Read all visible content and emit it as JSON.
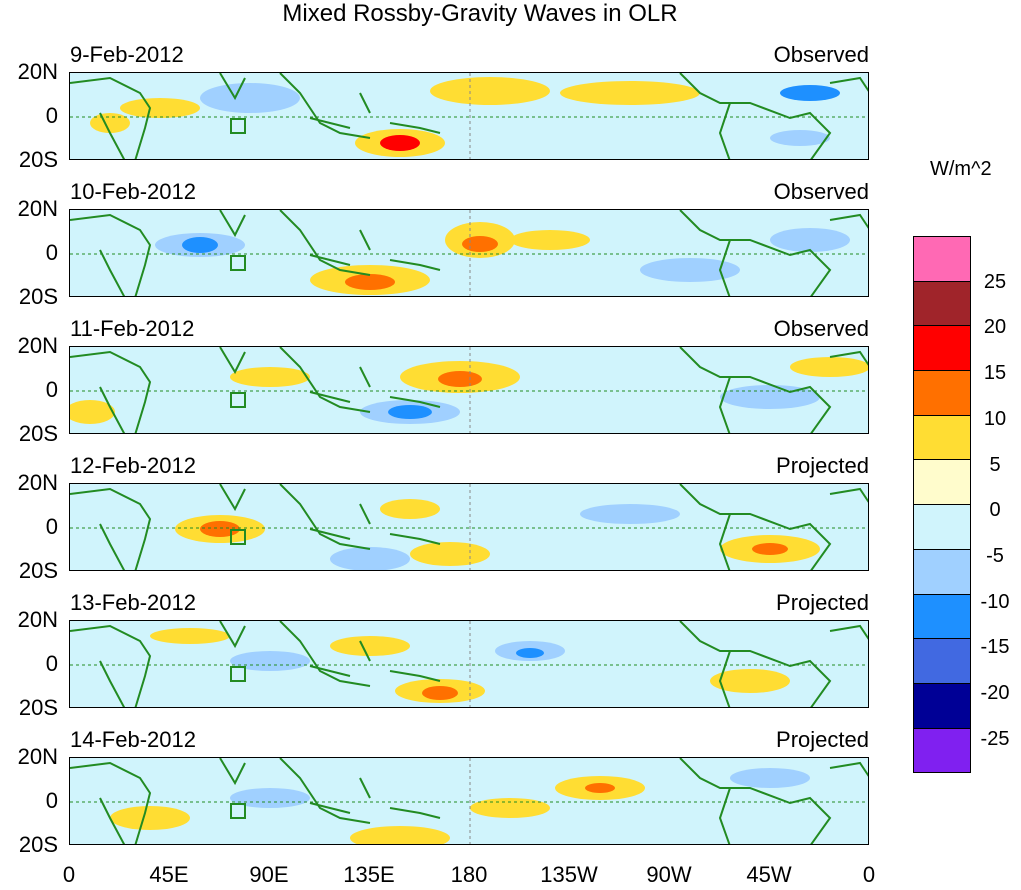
{
  "title": "Mixed Rossby-Gravity Waves in OLR",
  "panels": [
    {
      "date": "9-Feb-2012",
      "status": "Observed"
    },
    {
      "date": "10-Feb-2012",
      "status": "Observed"
    },
    {
      "date": "11-Feb-2012",
      "status": "Observed"
    },
    {
      "date": "12-Feb-2012",
      "status": "Projected"
    },
    {
      "date": "13-Feb-2012",
      "status": "Projected"
    },
    {
      "date": "14-Feb-2012",
      "status": "Projected"
    }
  ],
  "lat_labels": [
    "20N",
    "0",
    "20S"
  ],
  "lon_labels": [
    "0",
    "45E",
    "90E",
    "135E",
    "180",
    "135W",
    "90W",
    "45W",
    "0"
  ],
  "colorbar": {
    "units": "W/m^2",
    "labels": [
      "25",
      "20",
      "15",
      "10",
      "5",
      "0",
      "-5",
      "-10",
      "-15",
      "-20",
      "-25"
    ],
    "colors": [
      "#ff69b4",
      "#a0242a",
      "#ff0000",
      "#ff7000",
      "#ffdd33",
      "#fffccc",
      "#d0f4fc",
      "#a0d0ff",
      "#1e90ff",
      "#4169e1",
      "#000096",
      "#8020f0"
    ]
  }
}
